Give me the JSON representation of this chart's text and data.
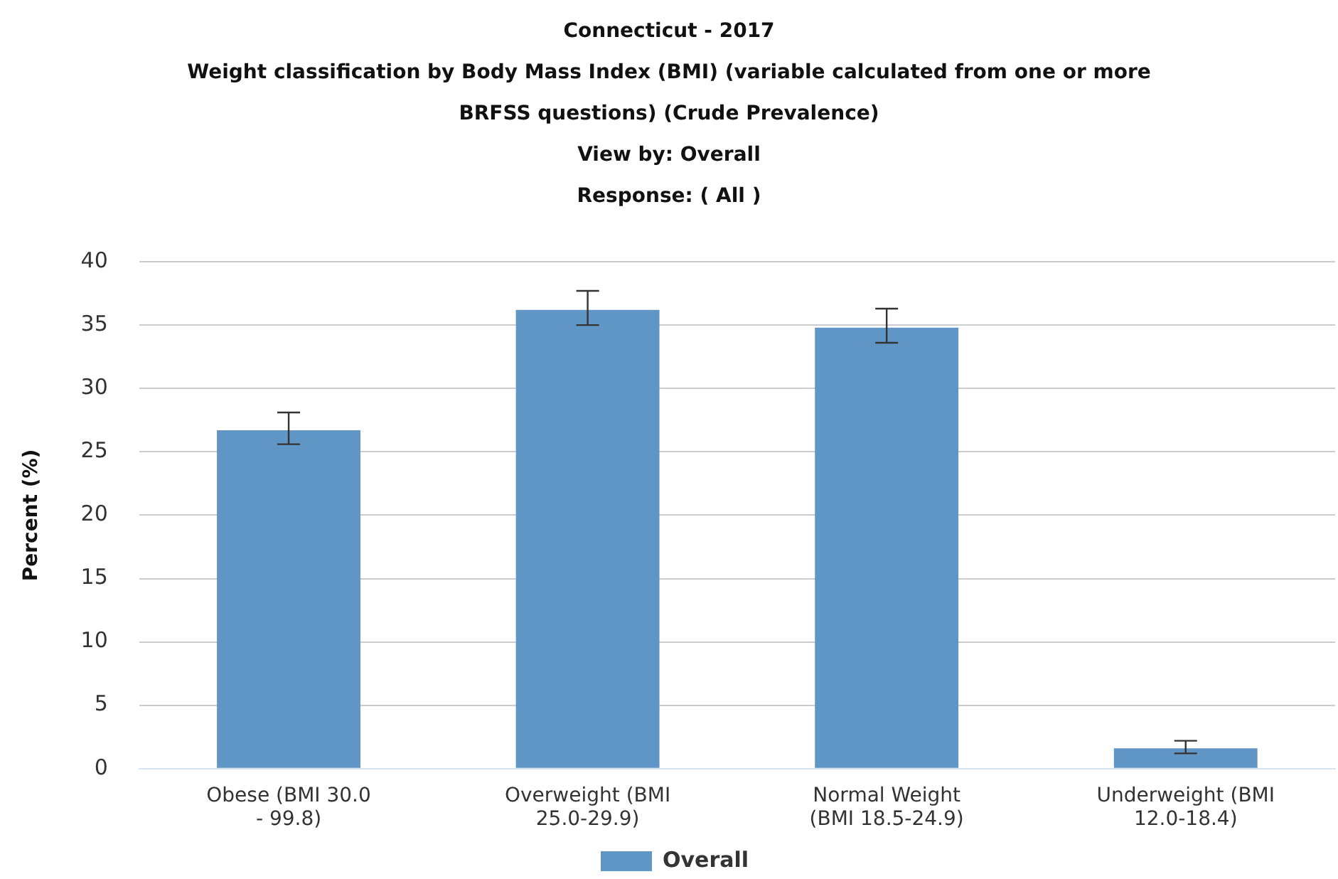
{
  "chart_data": {
    "type": "bar",
    "title": "Connecticut - 2017",
    "subtitle": "Weight classification by Body Mass Index (BMI) (variable calculated from one or more BRFSS questions) (Crude Prevalence)",
    "annotations": [
      "View by: Overall",
      "Response: ( All )"
    ],
    "ylabel": "Percent (%)",
    "categories": [
      "Obese (BMI 30.0 - 99.8)",
      "Overweight (BMI 25.0-29.9)",
      "Normal Weight (BMI 18.5-24.9)",
      "Underweight (BMI 12.0-18.4)"
    ],
    "series": [
      {
        "name": "Overall",
        "color": "#6096c5",
        "values": [
          26.7,
          36.2,
          34.8,
          1.6
        ],
        "errors": [
          [
            25.6,
            28.1
          ],
          [
            35.0,
            37.7
          ],
          [
            33.6,
            36.3
          ],
          [
            1.2,
            2.2
          ]
        ]
      }
    ],
    "ylim": [
      0,
      40
    ],
    "yticks": [
      0,
      5,
      10,
      15,
      20,
      25,
      30,
      35,
      40
    ],
    "grid": "y",
    "legend": "bottom"
  }
}
